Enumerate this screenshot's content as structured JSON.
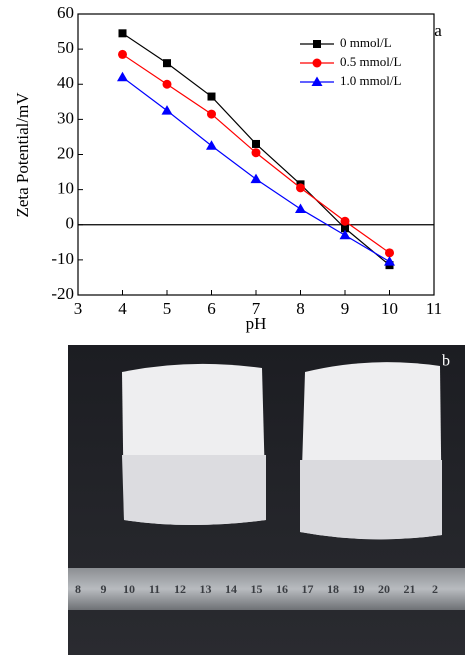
{
  "chart_data": {
    "type": "line",
    "annotation": "a",
    "x_label": "pH",
    "y_label": "Zeta Potential/mV",
    "x": [
      4,
      5,
      6,
      7,
      8,
      9,
      10
    ],
    "series": [
      {
        "name": "0 mmol/L",
        "color": "#000000",
        "marker": "square",
        "values": [
          54.5,
          46,
          36.5,
          23,
          11.5,
          -1,
          -11.5
        ]
      },
      {
        "name": "0.5 mmol/L",
        "color": "#ff0000",
        "marker": "circle",
        "values": [
          48.5,
          40,
          31.5,
          20.5,
          10.5,
          1,
          -8
        ]
      },
      {
        "name": "1.0 mmol/L",
        "color": "#0000ff",
        "marker": "triangle",
        "values": [
          42,
          32.5,
          22.5,
          13,
          4.5,
          -3,
          -10.5
        ]
      }
    ],
    "xlim": [
      3,
      11
    ],
    "xticks": [
      3,
      4,
      5,
      6,
      7,
      8,
      9,
      10,
      11
    ],
    "ylim": [
      -20,
      60
    ],
    "yticks": [
      -20,
      -10,
      0,
      10,
      20,
      30,
      40,
      50,
      60
    ],
    "reference_line": 0,
    "legend": "upper right"
  },
  "photo": {
    "label": "b",
    "ruler_numbers": [
      "8",
      "9",
      "10",
      "11",
      "12",
      "13",
      "14",
      "15",
      "16",
      "17",
      "18",
      "19",
      "20",
      "21",
      "2"
    ]
  }
}
